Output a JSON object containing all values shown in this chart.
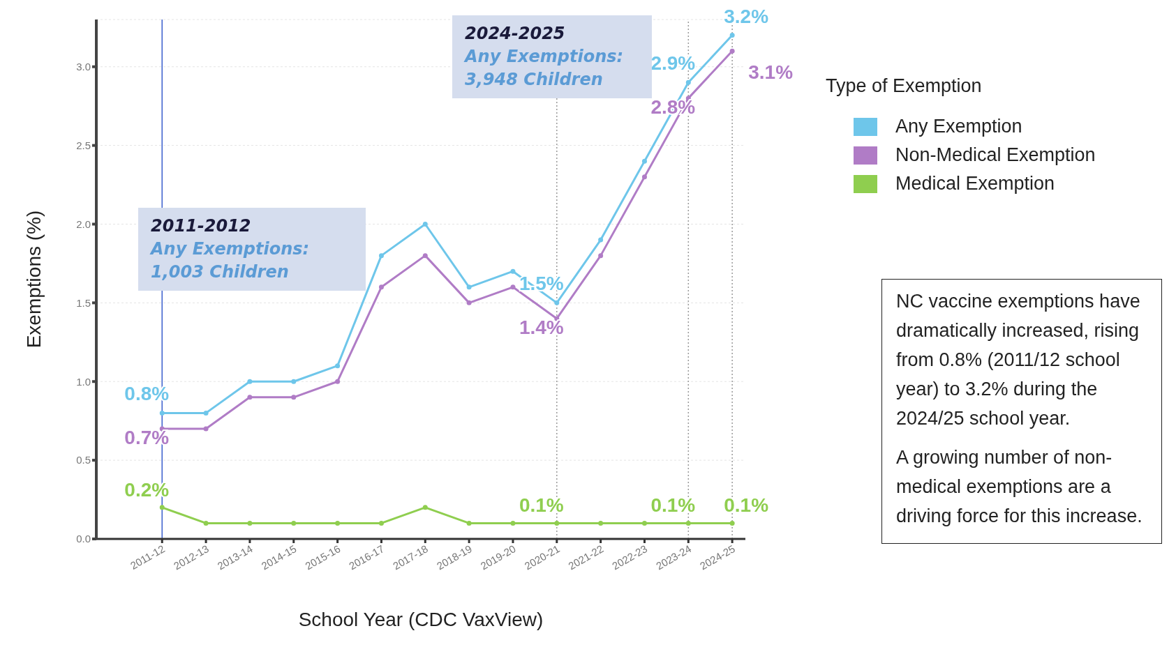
{
  "chart_data": {
    "type": "line",
    "xlabel": "School Year (CDC VaxView)",
    "ylabel": "Exemptions (%)",
    "legend_title": "Type of Exemption",
    "legend": "right",
    "marker": "circle",
    "line_style": "solid",
    "grid": "y",
    "categories": [
      "2011-12",
      "2012-13",
      "2013-14",
      "2014-15",
      "2015-16",
      "2016-17",
      "2017-18",
      "2018-19",
      "2019-20",
      "2020-21",
      "2021-22",
      "2022-23",
      "2023-24",
      "2024-25"
    ],
    "ylim": [
      0,
      3.3
    ],
    "yticks": [
      {
        "value": 0,
        "label": "0.0"
      },
      0.5,
      {
        "value": 1,
        "label": "1.0"
      },
      1.5,
      {
        "value": 2,
        "label": "2.0"
      },
      2.5,
      {
        "value": 3,
        "label": "3.0"
      }
    ],
    "series": [
      {
        "name": "Any Exemption",
        "color": "#6ec6ea",
        "values": [
          0.8,
          0.8,
          1.0,
          1.0,
          1.1,
          1.8,
          2.0,
          1.6,
          1.7,
          1.5,
          1.9,
          2.4,
          2.9,
          3.2
        ],
        "value_labels": [
          "0.8%",
          null,
          null,
          null,
          null,
          null,
          null,
          null,
          null,
          "1.5%",
          null,
          null,
          "2.9%",
          "3.2%"
        ]
      },
      {
        "name": "Non-Medical Exemption",
        "color": "#b07cc6",
        "values": [
          0.7,
          0.7,
          0.9,
          0.9,
          1.0,
          1.6,
          1.8,
          1.5,
          1.6,
          1.4,
          1.8,
          2.3,
          2.8,
          3.1
        ],
        "value_labels": [
          "0.7%",
          null,
          null,
          null,
          null,
          null,
          null,
          null,
          null,
          "1.4%",
          null,
          null,
          "2.8%",
          "3.1%"
        ]
      },
      {
        "name": "Medical Exemption",
        "color": "#8fce4f",
        "values": [
          0.2,
          0.1,
          0.1,
          0.1,
          0.1,
          0.1,
          0.2,
          0.1,
          0.1,
          0.1,
          0.1,
          0.1,
          0.1,
          0.1
        ],
        "value_labels": [
          "0.2%",
          null,
          null,
          null,
          null,
          null,
          null,
          null,
          null,
          "0.1%",
          null,
          null,
          "0.1%",
          "0.1%"
        ]
      }
    ],
    "ref_lines": [
      {
        "axis": "x",
        "value": "2011-12",
        "color": "#3a5fcd",
        "line_style": "solid"
      },
      {
        "axis": "x",
        "value": "2020-21",
        "color": "#999999",
        "line_style": "dotted"
      },
      {
        "axis": "x",
        "value": "2023-24",
        "color": "#999999",
        "line_style": "dotted"
      },
      {
        "axis": "x",
        "value": "2024-25",
        "color": "#999999",
        "line_style": "dotted"
      }
    ],
    "annotations": [
      "2011-2012\nAny Exemptions:\n1,003 Children",
      "2024-2025\nAny Exemptions:\n3,948 Children",
      "NC vaccine exemptions have dramatically increased, rising from 0.8% (2011/12 school year) to 3.2% during the 2024/25 school year.",
      "A growing number of non-medical exemptions are a driving force for this increase."
    ]
  }
}
